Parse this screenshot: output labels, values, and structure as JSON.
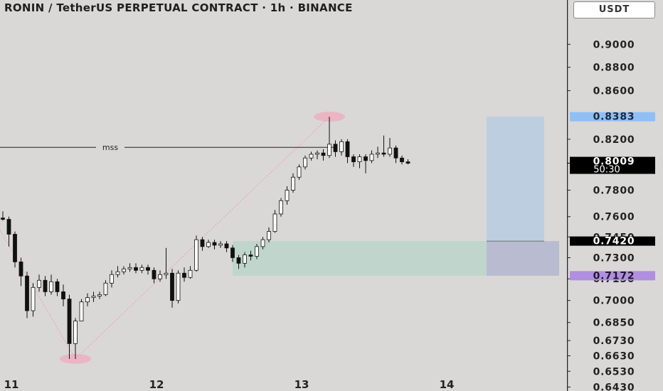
{
  "header": {
    "title": "RONIN / TetherUS PERPETUAL CONTRACT · 1h · BINANCE",
    "currency": "USDT"
  },
  "colors": {
    "background": "#d9d8d6",
    "bull_candle": "#ffffff",
    "bear_candle": "#111111",
    "target_zone": "#bccde0",
    "entry_zone": "#bcd6cc",
    "stop_zone": "#d4c1d9",
    "circle_marker": "#ebb6c4",
    "pivot_line": "#eaa2b4",
    "price_current": "#000000",
    "price_target": "#90bff5",
    "price_stop": "#b08ee0"
  },
  "chart_data": {
    "type": "candlestick",
    "title": "RONIN / TetherUS PERPETUAL CONTRACT · 1h · BINANCE",
    "x_ticks": [
      {
        "label": "11",
        "index": 0
      },
      {
        "label": "12",
        "index": 24
      },
      {
        "label": "13",
        "index": 48
      },
      {
        "label": "14",
        "index": 72
      }
    ],
    "y_ticks": [
      "0.9000",
      "0.8800",
      "0.8600",
      "0.8200",
      "0.7800",
      "0.7600",
      "0.7450",
      "0.7300",
      "0.7150",
      "0.7000",
      "0.6850",
      "0.6730",
      "0.6630",
      "0.6530",
      "0.6430"
    ],
    "y_scale": "log",
    "ylim": [
      0.6405,
      0.94
    ],
    "current_price": "0.8009",
    "countdown": "50:30",
    "price_labels": [
      {
        "value": "0.8383",
        "role": "target"
      },
      {
        "value": "0.8009",
        "role": "current"
      },
      {
        "value": "0.7420",
        "role": "entry"
      },
      {
        "value": "0.7172",
        "role": "stop"
      }
    ],
    "candles": [
      [
        0.759,
        0.758,
        0.764,
        0.757
      ],
      [
        0.758,
        0.747,
        0.76,
        0.738
      ],
      [
        0.747,
        0.727,
        0.749,
        0.723
      ],
      [
        0.727,
        0.717,
        0.73,
        0.71
      ],
      [
        0.717,
        0.693,
        0.72,
        0.688
      ],
      [
        0.693,
        0.709,
        0.712,
        0.689
      ],
      [
        0.709,
        0.714,
        0.718,
        0.706
      ],
      [
        0.714,
        0.706,
        0.717,
        0.703
      ],
      [
        0.706,
        0.713,
        0.718,
        0.704
      ],
      [
        0.713,
        0.706,
        0.715,
        0.703
      ],
      [
        0.706,
        0.701,
        0.711,
        0.696
      ],
      [
        0.701,
        0.671,
        0.704,
        0.661
      ],
      [
        0.671,
        0.686,
        0.688,
        0.661
      ],
      [
        0.686,
        0.699,
        0.701,
        0.686
      ],
      [
        0.699,
        0.702,
        0.705,
        0.696
      ],
      [
        0.702,
        0.703,
        0.706,
        0.699
      ],
      [
        0.703,
        0.704,
        0.706,
        0.701
      ],
      [
        0.704,
        0.712,
        0.714,
        0.703
      ],
      [
        0.712,
        0.718,
        0.721,
        0.709
      ],
      [
        0.718,
        0.72,
        0.724,
        0.716
      ],
      [
        0.72,
        0.722,
        0.724,
        0.718
      ],
      [
        0.722,
        0.723,
        0.726,
        0.72
      ],
      [
        0.723,
        0.721,
        0.726,
        0.719
      ],
      [
        0.721,
        0.723,
        0.725,
        0.719
      ],
      [
        0.723,
        0.721,
        0.725,
        0.718
      ],
      [
        0.721,
        0.715,
        0.723,
        0.712
      ],
      [
        0.715,
        0.718,
        0.721,
        0.713
      ],
      [
        0.718,
        0.719,
        0.737,
        0.715
      ],
      [
        0.719,
        0.7,
        0.722,
        0.695
      ],
      [
        0.7,
        0.719,
        0.721,
        0.698
      ],
      [
        0.719,
        0.716,
        0.723,
        0.713
      ],
      [
        0.716,
        0.721,
        0.724,
        0.715
      ],
      [
        0.721,
        0.743,
        0.746,
        0.72
      ],
      [
        0.743,
        0.738,
        0.745,
        0.735
      ],
      [
        0.738,
        0.741,
        0.743,
        0.737
      ],
      [
        0.741,
        0.739,
        0.743,
        0.736
      ],
      [
        0.739,
        0.74,
        0.742,
        0.737
      ],
      [
        0.74,
        0.737,
        0.742,
        0.734
      ],
      [
        0.737,
        0.73,
        0.739,
        0.727
      ],
      [
        0.73,
        0.726,
        0.732,
        0.722
      ],
      [
        0.726,
        0.732,
        0.734,
        0.723
      ],
      [
        0.732,
        0.731,
        0.735,
        0.728
      ],
      [
        0.731,
        0.738,
        0.74,
        0.729
      ],
      [
        0.738,
        0.743,
        0.745,
        0.736
      ],
      [
        0.743,
        0.749,
        0.752,
        0.741
      ],
      [
        0.749,
        0.762,
        0.765,
        0.748
      ],
      [
        0.762,
        0.772,
        0.774,
        0.76
      ],
      [
        0.772,
        0.78,
        0.783,
        0.769
      ],
      [
        0.78,
        0.79,
        0.793,
        0.778
      ],
      [
        0.79,
        0.798,
        0.8,
        0.788
      ],
      [
        0.798,
        0.805,
        0.807,
        0.796
      ],
      [
        0.805,
        0.808,
        0.81,
        0.803
      ],
      [
        0.808,
        0.809,
        0.811,
        0.804
      ],
      [
        0.809,
        0.807,
        0.812,
        0.803
      ],
      [
        0.807,
        0.816,
        0.8383,
        0.805
      ],
      [
        0.816,
        0.81,
        0.819,
        0.806
      ],
      [
        0.81,
        0.818,
        0.82,
        0.807
      ],
      [
        0.818,
        0.806,
        0.82,
        0.801
      ],
      [
        0.806,
        0.802,
        0.808,
        0.798
      ],
      [
        0.802,
        0.806,
        0.808,
        0.797
      ],
      [
        0.806,
        0.803,
        0.808,
        0.793
      ],
      [
        0.803,
        0.808,
        0.811,
        0.801
      ],
      [
        0.808,
        0.809,
        0.814,
        0.805
      ],
      [
        0.809,
        0.808,
        0.823,
        0.806
      ],
      [
        0.808,
        0.813,
        0.821,
        0.806
      ],
      [
        0.813,
        0.805,
        0.815,
        0.801
      ],
      [
        0.805,
        0.802,
        0.807,
        0.8
      ],
      [
        0.802,
        0.8009,
        0.804,
        0.8
      ]
    ],
    "levels": [
      {
        "label": "mss",
        "price": 0.8135,
        "from_index": -20,
        "to_index": 55
      }
    ],
    "annotations": [
      {
        "type": "swing_low_marker",
        "index": 12,
        "price": 0.661
      },
      {
        "type": "swing_high_marker",
        "index": 54,
        "price": 0.8383
      }
    ],
    "zones": [
      {
        "name": "order-block",
        "from_index": 38,
        "to_index": 80,
        "top": 0.742,
        "bottom": 0.7172
      },
      {
        "name": "target",
        "from_index": 80,
        "to_index": 120,
        "top": 0.8383,
        "bottom": 0.742
      },
      {
        "name": "stop",
        "from_index": 80,
        "to_index": 120,
        "top": 0.742,
        "bottom": 0.7172
      }
    ]
  }
}
